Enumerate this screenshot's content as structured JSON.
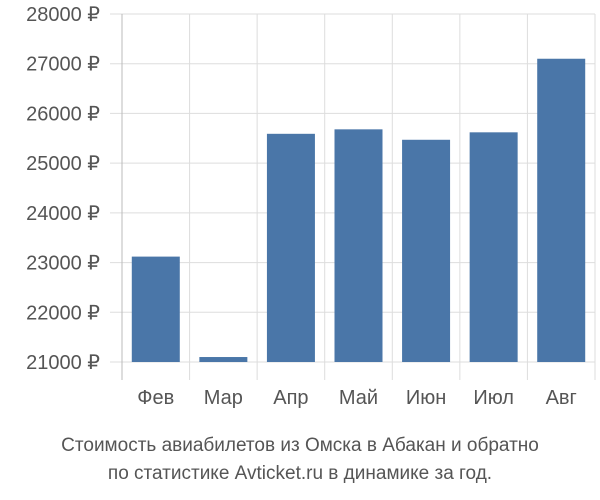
{
  "chart_data": {
    "type": "bar",
    "categories": [
      "Фев",
      "Мар",
      "Апр",
      "Май",
      "Июн",
      "Июл",
      "Авг"
    ],
    "values": [
      23120,
      21100,
      25590,
      25680,
      25470,
      25620,
      27100
    ],
    "ylim": [
      21000,
      28000
    ],
    "yticks": [
      21000,
      22000,
      23000,
      24000,
      25000,
      26000,
      27000,
      28000
    ],
    "ytick_labels": [
      "21000 ₽",
      "22000 ₽",
      "23000 ₽",
      "24000 ₽",
      "25000 ₽",
      "26000 ₽",
      "27000 ₽",
      "28000 ₽"
    ],
    "grid": true,
    "bar_color": "#4a76a8",
    "grid_color": "#dddddd"
  },
  "caption": {
    "line1": "Стоимость авиабилетов из Омска в Абакан и обратно",
    "line2": "по статистике Avticket.ru в динамике за год."
  }
}
